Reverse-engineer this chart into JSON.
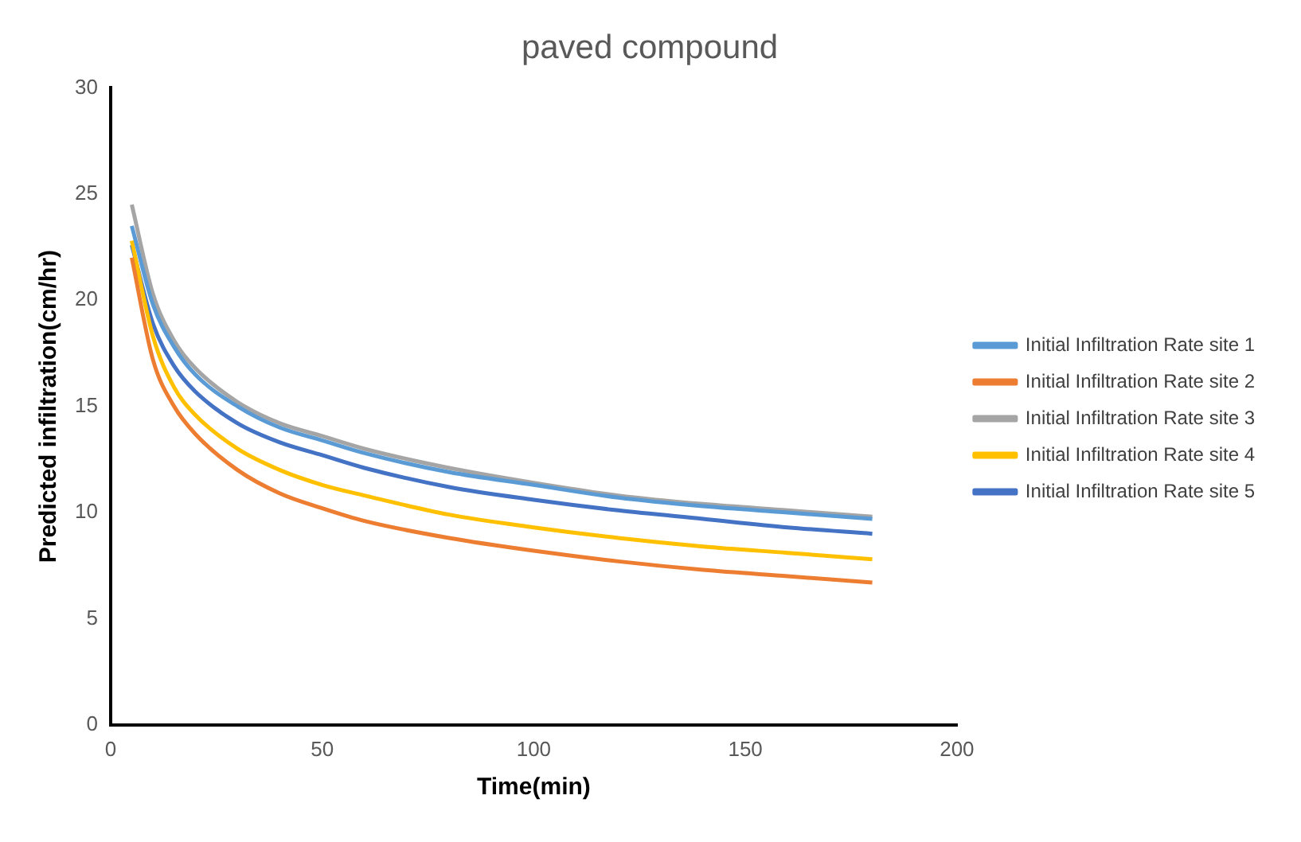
{
  "chart_data": {
    "type": "line",
    "title": "paved compound",
    "xlabel": "Time(min)",
    "ylabel": "Predicted infiltration(cm/hr)",
    "x": [
      5,
      10,
      15,
      20,
      30,
      40,
      50,
      60,
      80,
      100,
      120,
      140,
      160,
      180
    ],
    "series": [
      {
        "name": "Initial Infiltration Rate site 1",
        "color": "#5b9bd5",
        "values": [
          23.5,
          19.8,
          17.8,
          16.5,
          15.0,
          14.0,
          13.4,
          12.8,
          11.9,
          11.3,
          10.7,
          10.3,
          10.0,
          9.7
        ]
      },
      {
        "name": "Initial Infiltration Rate site 2",
        "color": "#ed7d31",
        "values": [
          22.0,
          17.2,
          15.0,
          13.7,
          12.0,
          10.9,
          10.2,
          9.6,
          8.8,
          8.2,
          7.7,
          7.3,
          7.0,
          6.7
        ]
      },
      {
        "name": "Initial Infiltration Rate site 3",
        "color": "#a5a5a5",
        "values": [
          24.5,
          20.3,
          18.1,
          16.8,
          15.2,
          14.2,
          13.6,
          13.0,
          12.1,
          11.4,
          10.8,
          10.4,
          10.1,
          9.8
        ]
      },
      {
        "name": "Initial Infiltration Rate site 4",
        "color": "#ffc000",
        "values": [
          22.8,
          18.3,
          15.9,
          14.6,
          13.0,
          12.0,
          11.3,
          10.8,
          9.9,
          9.3,
          8.8,
          8.4,
          8.1,
          7.8
        ]
      },
      {
        "name": "Initial Infiltration Rate site 5",
        "color": "#4472c4",
        "values": [
          22.6,
          18.9,
          16.9,
          15.7,
          14.2,
          13.3,
          12.7,
          12.1,
          11.2,
          10.6,
          10.1,
          9.7,
          9.3,
          9.0
        ]
      }
    ],
    "xlim": [
      0,
      200
    ],
    "xticks": [
      0,
      50,
      100,
      150,
      200
    ],
    "ylim": [
      0,
      30
    ],
    "yticks": [
      0,
      5,
      10,
      15,
      20,
      25,
      30
    ],
    "grid": false,
    "legend": "right",
    "marker": "none",
    "line_style": "solid"
  }
}
